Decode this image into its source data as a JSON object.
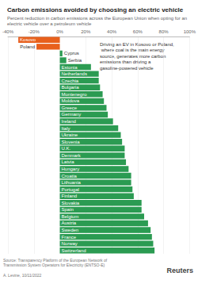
{
  "chart_data": {
    "type": "bar",
    "orientation": "horizontal",
    "title": "Carbon emissions avoided by choosing an electric vehicle",
    "subtitle": "Percent reduction in carbon emissions across the European Union when opting for an electric vehicle over a petroleum vehicle",
    "annotation": "Driving an EV in Kosovo or Poland, where coal is the main energy source, generates more carbon emissions than driving a gasoline-powered vehicle",
    "source": "Source: Transparency Platform of the European Network of Transmission System Operators for Electricity (ENTSO-E)",
    "credit": "A. Levine, 10/11/2022",
    "brand": "Reuters",
    "categories": [
      "Kosovo",
      "Poland",
      "Cyprus",
      "Serbia",
      "Estonia",
      "Netherlands",
      "Czechia",
      "Bulgaria",
      "Montenegro",
      "Moldova",
      "Greece",
      "Germany",
      "Ireland",
      "Italy",
      "Ukraine",
      "Slovenia",
      "U.K.",
      "Denmark",
      "Latvia",
      "Hungary",
      "Croatia",
      "Lithuania",
      "Portugal",
      "Finland",
      "Slovakia",
      "Spain",
      "Belgium",
      "Austria",
      "Sweden",
      "France",
      "Norway",
      "Switzerland"
    ],
    "values": [
      -32,
      -18,
      2,
      5,
      24,
      30,
      30,
      31,
      33,
      34,
      36,
      37,
      41,
      45,
      47,
      48,
      50,
      50,
      51,
      53,
      55,
      55,
      56,
      57,
      63,
      63,
      65,
      68,
      70,
      71,
      72,
      73
    ],
    "colors": [
      "#e8601c",
      "#e8601c",
      "#2b9b52",
      "#2b9b52",
      "#2b9b52",
      "#2b9b52",
      "#2b9b52",
      "#2b9b52",
      "#2b9b52",
      "#2b9b52",
      "#2b9b52",
      "#2b9b52",
      "#2b9b52",
      "#2b9b52",
      "#2b9b52",
      "#2b9b52",
      "#2b9b52",
      "#2b9b52",
      "#2b9b52",
      "#2b9b52",
      "#2b9b52",
      "#2b9b52",
      "#2b9b52",
      "#2b9b52",
      "#2b9b52",
      "#2b9b52",
      "#2b9b52",
      "#2b9b52",
      "#2b9b52",
      "#2b9b52",
      "#2b9b52",
      "#2b9b52"
    ],
    "xlim": [
      -40,
      100
    ],
    "xticks": [
      {
        "value": -40,
        "label": "-40%"
      },
      {
        "value": -20,
        "label": "-20%"
      },
      {
        "value": 0,
        "label": "0%"
      },
      {
        "value": 20,
        "label": "20%"
      },
      {
        "value": 40,
        "label": "40%"
      },
      {
        "value": 60,
        "label": "60%"
      },
      {
        "value": 80,
        "label": "80%"
      },
      {
        "value": 100,
        "label": "100%"
      }
    ],
    "grid": true,
    "tick_labels": "x"
  }
}
